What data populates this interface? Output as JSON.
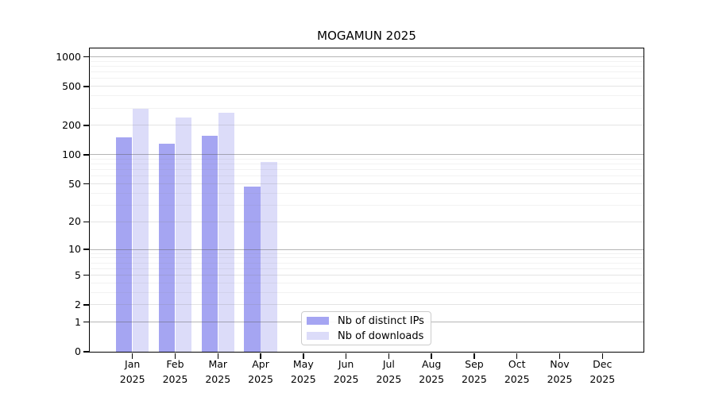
{
  "title": "MOGAMUN 2025",
  "colors": {
    "bar_distinct_ips": "#a5a5f2",
    "bar_downloads": "#dcdcf9",
    "axis": "#000000",
    "grid_major": "rgba(90,90,90,0.45)",
    "grid_mid": "rgba(130,130,130,0.22)",
    "grid_minor": "rgba(140,140,140,0.11)",
    "legend_border": "#cccccc"
  },
  "chart_data": {
    "type": "bar",
    "title": "MOGAMUN 2025",
    "categories": [
      "Jan 2025",
      "Feb 2025",
      "Mar 2025",
      "Apr 2025",
      "May 2025",
      "Jun 2025",
      "Jul 2025",
      "Aug 2025",
      "Sep 2025",
      "Oct 2025",
      "Nov 2025",
      "Dec 2025"
    ],
    "series": [
      {
        "name": "Nb of distinct IPs",
        "color": "#a5a5f2",
        "values": [
          150,
          130,
          155,
          47,
          0,
          0,
          0,
          0,
          0,
          0,
          0,
          0
        ]
      },
      {
        "name": "Nb of downloads",
        "color": "#dcdcf9",
        "values": [
          295,
          240,
          270,
          85,
          0,
          0,
          0,
          0,
          0,
          0,
          0,
          0
        ]
      }
    ],
    "xlabel": "",
    "ylabel": "",
    "y_scale": "log(1+y)",
    "y_ticks": [
      1000,
      500,
      200,
      100,
      50,
      20,
      10,
      5,
      2,
      1,
      0
    ],
    "ylim": [
      0,
      1230
    ],
    "grid": "horizontal",
    "legend_position": "lower center"
  },
  "y_gridlines": {
    "major": [
      1,
      10,
      100,
      1000
    ],
    "mid": [
      2,
      5,
      20,
      50,
      200,
      500
    ],
    "minor": [
      3,
      4,
      6,
      7,
      8,
      9,
      30,
      40,
      60,
      70,
      80,
      90,
      300,
      400,
      600,
      700,
      800,
      900
    ]
  }
}
